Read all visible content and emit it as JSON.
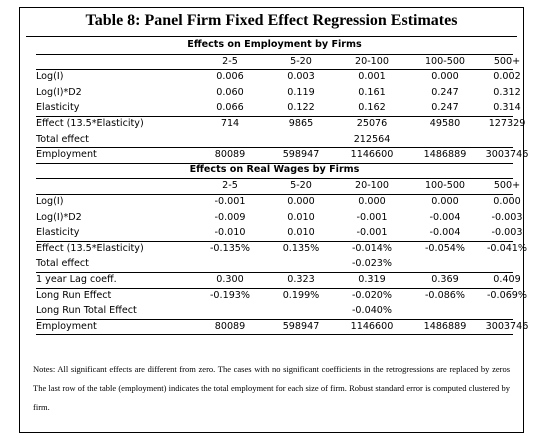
{
  "title": "Table 8: Panel Firm Fixed Effect Regression Estimates",
  "panel1": {
    "header": "Effects on Employment by Firms",
    "columns": [
      "2-5",
      "5-20",
      "20-100",
      "100-500",
      "500+"
    ],
    "rows": [
      {
        "label": "Log(I)",
        "values": [
          "0.006",
          "0.003",
          "0.001",
          "0.000",
          "0.002"
        ]
      },
      {
        "label": "Log(I)*D2",
        "values": [
          "0.060",
          "0.119",
          "0.161",
          "0.247",
          "0.312"
        ]
      },
      {
        "label": "Elasticity",
        "values": [
          "0.066",
          "0.122",
          "0.162",
          "0.247",
          "0.314"
        ]
      },
      {
        "label": "Effect (13.5*Elasticity)",
        "values": [
          "714",
          "9865",
          "25076",
          "49580",
          "127329"
        ]
      },
      {
        "label": "Total effect",
        "values": [
          "",
          "",
          "212564",
          "",
          ""
        ]
      },
      {
        "label": "Employment",
        "values": [
          "80089",
          "598947",
          "1146600",
          "1486889",
          "3003746"
        ]
      }
    ]
  },
  "panel2": {
    "header": "Effects on Real Wages by Firms",
    "columns": [
      "2-5",
      "5-20",
      "20-100",
      "100-500",
      "500+"
    ],
    "rows": [
      {
        "label": "Log(I)",
        "values": [
          "-0.001",
          "0.000",
          "0.000",
          "0.000",
          "0.000"
        ]
      },
      {
        "label": "Log(I)*D2",
        "values": [
          "-0.009",
          "0.010",
          "-0.001",
          "-0.004",
          "-0.003"
        ]
      },
      {
        "label": "Elasticity",
        "values": [
          "-0.010",
          "0.010",
          "-0.001",
          "-0.004",
          "-0.003"
        ]
      },
      {
        "label": "Effect (13.5*Elasticity)",
        "values": [
          "-0.135%",
          "0.135%",
          "-0.014%",
          "-0.054%",
          "-0.041%"
        ]
      },
      {
        "label": "Total effect",
        "values": [
          "",
          "",
          "-0.023%",
          "",
          ""
        ]
      },
      {
        "label": "1 year Lag coeff.",
        "values": [
          "0.300",
          "0.323",
          "0.319",
          "0.369",
          "0.409"
        ]
      },
      {
        "label": "Long Run Effect",
        "values": [
          "-0.193%",
          "0.199%",
          "-0.020%",
          "-0.086%",
          "-0.069%"
        ]
      },
      {
        "label": "Long Run Total Effect",
        "values": [
          "",
          "",
          "-0.040%",
          "",
          ""
        ]
      },
      {
        "label": "Employment",
        "values": [
          "80089",
          "598947",
          "1146600",
          "1486889",
          "3003746"
        ]
      }
    ]
  },
  "notes": "Notes: All significant effects are different from zero. The cases with no significant coefficients in the retrogressions are replaced by zeros The last row of the table (employment) indicates the total employment for each size of firm. Robust standard error is computed clustered by firm."
}
